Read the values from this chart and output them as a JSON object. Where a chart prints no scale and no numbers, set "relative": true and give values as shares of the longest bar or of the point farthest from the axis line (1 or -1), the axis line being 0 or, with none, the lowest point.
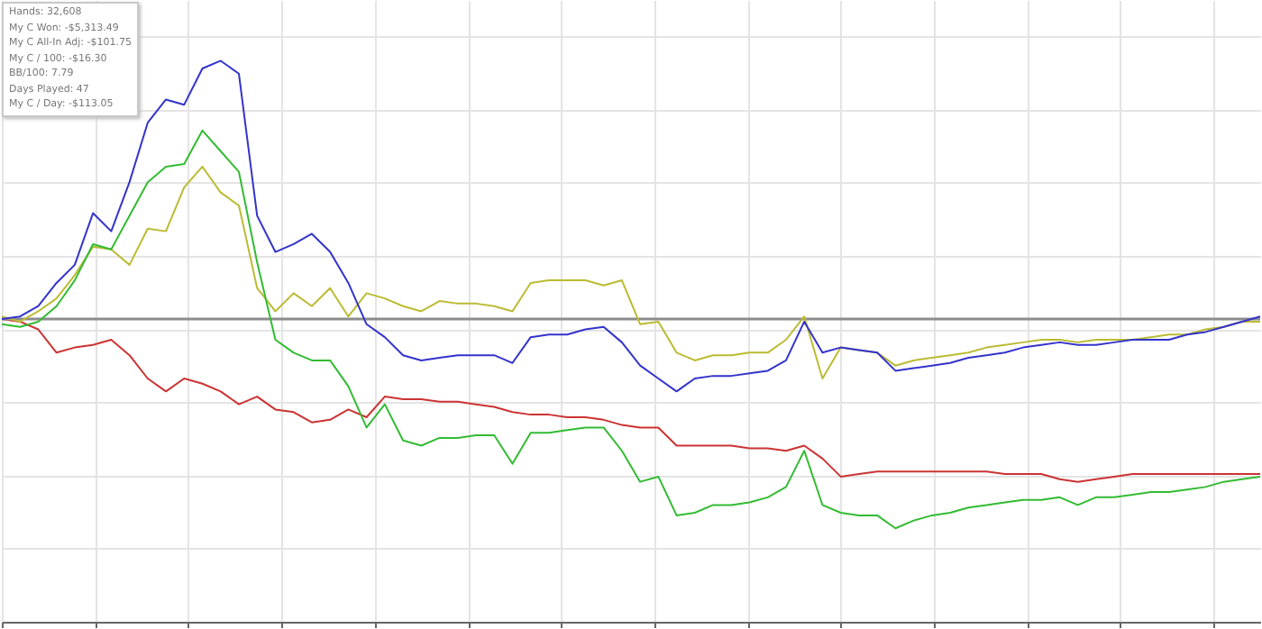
{
  "chart_data": {
    "type": "line",
    "relative": true,
    "grid": true,
    "annotations": [
      "Hands: 32,608",
      "My C Won: -$5,313.49",
      "My C All-In Adj: -$101.75",
      "My C / 100: -$16.30",
      "BB/100: 7.79",
      "Days Played: 47",
      "My C / Day: -$113.05"
    ],
    "ref_lines": [
      {
        "axis": "y",
        "value": 0,
        "color": "#8c8c8c"
      }
    ],
    "categories": [
      null,
      null,
      null,
      null,
      null,
      null,
      null,
      null,
      null,
      null,
      null,
      null,
      null,
      null,
      null,
      null,
      null,
      null,
      null,
      null,
      null,
      null,
      null,
      null,
      null,
      null,
      null,
      null,
      null,
      null,
      null,
      null,
      null,
      null,
      null,
      null,
      null,
      null,
      null,
      null,
      null,
      null,
      null,
      null,
      null,
      null,
      null,
      null,
      null,
      null,
      null,
      null,
      null,
      null,
      null,
      null,
      null,
      null,
      null,
      null,
      null,
      null,
      null,
      null,
      null,
      null,
      null,
      null,
      null,
      null
    ],
    "series": [
      {
        "color": "#cc3333",
        "values": [
          0,
          -0.01,
          -0.04,
          -0.13,
          -0.11,
          -0.1,
          -0.08,
          -0.14,
          -0.23,
          -0.28,
          -0.23,
          -0.25,
          -0.28,
          -0.33,
          -0.3,
          -0.35,
          -0.36,
          -0.4,
          -0.39,
          -0.35,
          -0.38,
          -0.3,
          -0.31,
          -0.31,
          -0.32,
          -0.32,
          -0.33,
          -0.34,
          -0.36,
          -0.37,
          -0.37,
          -0.38,
          -0.38,
          -0.39,
          -0.41,
          -0.42,
          -0.42,
          -0.49,
          -0.49,
          -0.49,
          -0.49,
          -0.5,
          -0.5,
          -0.51,
          -0.49,
          -0.54,
          -0.61,
          -0.6,
          -0.59,
          -0.59,
          -0.59,
          -0.59,
          -0.59,
          -0.59,
          -0.59,
          -0.6,
          -0.6,
          -0.6,
          -0.62,
          -0.63,
          -0.62,
          -0.61,
          -0.6,
          -0.6,
          -0.6,
          -0.6,
          -0.6,
          -0.6,
          -0.6,
          -0.6
        ]
      },
      {
        "color": "#bbbb33",
        "values": [
          0.01,
          -0.01,
          0.03,
          0.08,
          0.17,
          0.28,
          0.27,
          0.21,
          0.35,
          0.34,
          0.51,
          0.59,
          0.49,
          0.44,
          0.12,
          0.03,
          0.1,
          0.05,
          0.12,
          0.01,
          0.1,
          0.08,
          0.05,
          0.03,
          0.07,
          0.06,
          0.06,
          0.05,
          0.03,
          0.14,
          0.15,
          0.15,
          0.15,
          0.13,
          0.15,
          -0.02,
          -0.01,
          -0.13,
          -0.16,
          -0.14,
          -0.14,
          -0.13,
          -0.13,
          -0.08,
          0.01,
          -0.23,
          -0.11,
          -0.12,
          -0.13,
          -0.18,
          -0.16,
          -0.15,
          -0.14,
          -0.13,
          -0.11,
          -0.1,
          -0.09,
          -0.08,
          -0.08,
          -0.09,
          -0.08,
          -0.08,
          -0.08,
          -0.07,
          -0.06,
          -0.06,
          -0.04,
          -0.03,
          -0.01,
          -0.01
        ]
      },
      {
        "color": "#33bb33",
        "values": [
          -0.02,
          -0.03,
          -0.01,
          0.05,
          0.15,
          0.29,
          0.27,
          0.4,
          0.53,
          0.59,
          0.6,
          0.73,
          0.65,
          0.57,
          0.22,
          -0.08,
          -0.13,
          -0.16,
          -0.16,
          -0.26,
          -0.42,
          -0.33,
          -0.47,
          -0.49,
          -0.46,
          -0.46,
          -0.45,
          -0.45,
          -0.56,
          -0.44,
          -0.44,
          -0.43,
          -0.42,
          -0.42,
          -0.51,
          -0.63,
          -0.61,
          -0.76,
          -0.75,
          -0.72,
          -0.72,
          -0.71,
          -0.69,
          -0.65,
          -0.51,
          -0.72,
          -0.75,
          -0.76,
          -0.76,
          -0.81,
          -0.78,
          -0.76,
          -0.75,
          -0.73,
          -0.72,
          -0.71,
          -0.7,
          -0.7,
          -0.69,
          -0.72,
          -0.69,
          -0.69,
          -0.68,
          -0.67,
          -0.67,
          -0.66,
          -0.65,
          -0.63,
          -0.62,
          -0.61
        ]
      },
      {
        "color": "#3333cc",
        "values": [
          0,
          0.01,
          0.05,
          0.14,
          0.21,
          0.41,
          0.34,
          0.53,
          0.76,
          0.85,
          0.83,
          0.97,
          1,
          0.95,
          0.4,
          0.26,
          0.29,
          0.33,
          0.26,
          0.14,
          -0.02,
          -0.07,
          -0.14,
          -0.16,
          -0.15,
          -0.14,
          -0.14,
          -0.14,
          -0.17,
          -0.07,
          -0.06,
          -0.06,
          -0.04,
          -0.03,
          -0.09,
          -0.18,
          -0.23,
          -0.28,
          -0.23,
          -0.22,
          -0.22,
          -0.21,
          -0.2,
          -0.16,
          -0.01,
          -0.13,
          -0.11,
          -0.12,
          -0.13,
          -0.2,
          -0.19,
          -0.18,
          -0.17,
          -0.15,
          -0.14,
          -0.13,
          -0.11,
          -0.1,
          -0.09,
          -0.1,
          -0.1,
          -0.09,
          -0.08,
          -0.08,
          -0.08,
          -0.06,
          -0.05,
          -0.03,
          -0.01,
          0.01
        ]
      }
    ]
  }
}
